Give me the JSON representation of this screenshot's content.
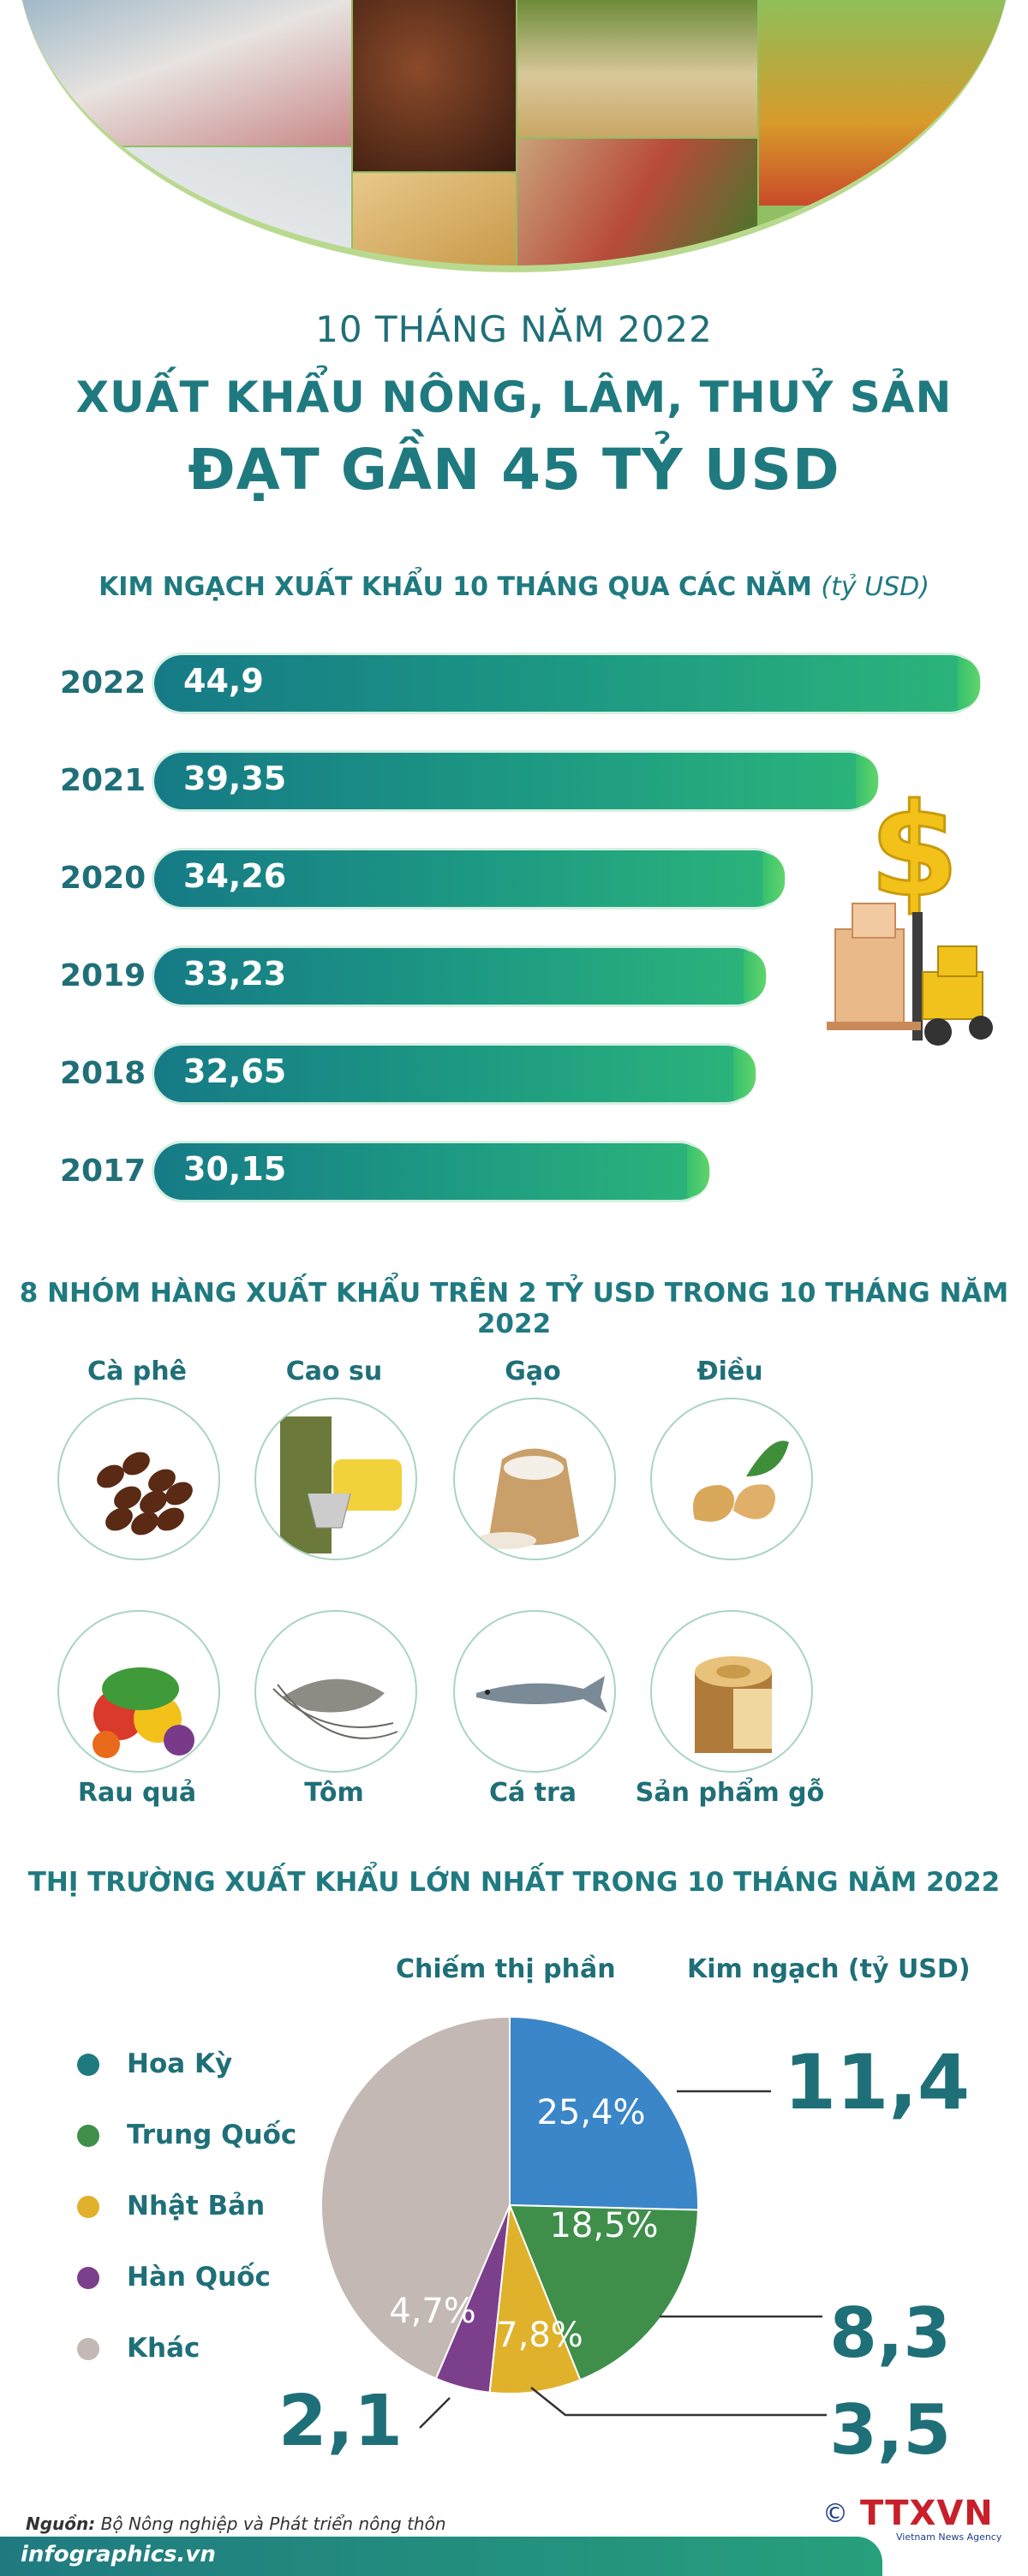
{
  "header": {
    "subtitle": "10 THÁNG NĂM 2022",
    "title_line1": "XUẤT KHẨU NÔNG, LÂM, THUỶ SẢN",
    "title_line2": "ĐẠT GẦN 45 TỶ USD"
  },
  "bar_section": {
    "title": "KIM NGẠCH XUẤT KHẨU 10 THÁNG QUA CÁC NĂM",
    "unit": "(tỷ USD)"
  },
  "products_section": {
    "title": "8 NHÓM HÀNG XUẤT KHẨU TRÊN 2 TỶ USD TRONG 10 THÁNG NĂM 2022",
    "items": [
      {
        "label": "Cà phê",
        "icon": "coffee-beans-icon"
      },
      {
        "label": "Cao su",
        "icon": "rubber-icon"
      },
      {
        "label": "Gạo",
        "icon": "rice-sack-icon"
      },
      {
        "label": "Điều",
        "icon": "cashew-icon"
      },
      {
        "label": "Rau quả",
        "icon": "vegetables-icon"
      },
      {
        "label": "Tôm",
        "icon": "shrimp-icon"
      },
      {
        "label": "Cá tra",
        "icon": "pangasius-fish-icon"
      },
      {
        "label": "Sản phẩm gỗ",
        "icon": "wood-log-icon"
      }
    ]
  },
  "market_section": {
    "title": "THỊ TRƯỜNG XUẤT KHẨU LỚN NHẤT TRONG 10 THÁNG NĂM 2022",
    "share_header": "Chiếm thị phần",
    "value_header": "Kim ngạch (tỷ USD)"
  },
  "chart_data": [
    {
      "type": "bar",
      "title": "KIM NGẠCH XUẤT KHẨU 10 THÁNG QUA CÁC NĂM",
      "unit": "tỷ USD",
      "orientation": "horizontal",
      "categories": [
        "2022",
        "2021",
        "2020",
        "2019",
        "2018",
        "2017"
      ],
      "values": [
        44.9,
        39.35,
        34.26,
        33.23,
        32.65,
        30.15
      ],
      "value_labels": [
        "44,9",
        "39,35",
        "34,26",
        "33,23",
        "32,65",
        "30,15"
      ],
      "color": "#1c9883"
    },
    {
      "type": "pie",
      "title": "THỊ TRƯỜNG XUẤT KHẨU LỚN NHẤT TRONG 10 THÁNG NĂM 2022",
      "legend_position": "left",
      "slices": [
        {
          "name": "Hoa Kỳ",
          "share": 25.4,
          "share_label": "25,4%",
          "value": 11.4,
          "value_label": "11,4",
          "color": "#3a86c8",
          "legend_color": "#1f7a80"
        },
        {
          "name": "Trung Quốc",
          "share": 18.5,
          "share_label": "18,5%",
          "value": 8.3,
          "value_label": "8,3",
          "color": "#3f8f4a",
          "legend_color": "#3f8f4a"
        },
        {
          "name": "Nhật Bản",
          "share": 7.8,
          "share_label": "7,8%",
          "value": 3.5,
          "value_label": "3,5",
          "color": "#e0b12a",
          "legend_color": "#e0b12a"
        },
        {
          "name": "Hàn Quốc",
          "share": 4.7,
          "share_label": "4,7%",
          "value": 2.1,
          "value_label": "2,1",
          "color": "#7b3f8c",
          "legend_color": "#7b3f8c"
        },
        {
          "name": "Khác",
          "share": 43.6,
          "share_label": "",
          "value": null,
          "value_label": "",
          "color": "#c3b8b4",
          "legend_color": "#c3b8b4"
        }
      ]
    }
  ],
  "footer": {
    "source_label": "Nguồn:",
    "source_text": "Bộ Nông nghiệp và Phát triển nông thôn",
    "site": "infographics.vn",
    "logo_copyright": "©",
    "logo_text": "TTXVN",
    "logo_sub": "Vietnam News Agency"
  }
}
